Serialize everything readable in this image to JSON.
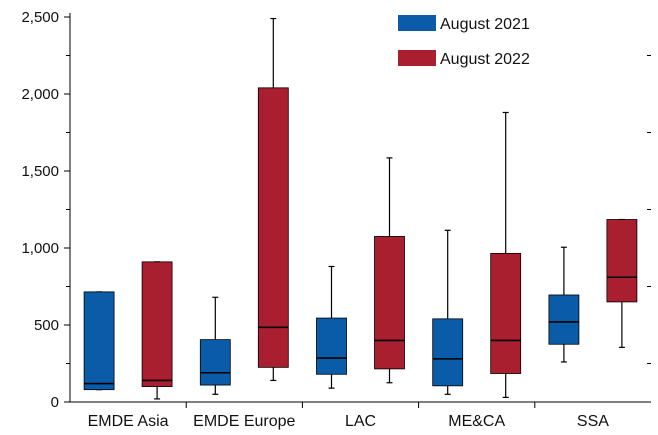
{
  "chart_data": {
    "type": "boxplot",
    "title": "",
    "xlabel": "",
    "ylabel": "",
    "ylim": [
      0,
      2500
    ],
    "yticks": [
      0,
      500,
      1000,
      1500,
      2000,
      2500
    ],
    "ytick_labels": [
      "0",
      "500",
      "1,000",
      "1,500",
      "2,000",
      "2,500"
    ],
    "grid": false,
    "legend_position": "top-right",
    "categories": [
      "EMDE Asia",
      "EMDE Europe",
      "LAC",
      "ME&CA",
      "SSA"
    ],
    "series": [
      {
        "name": "August 2021",
        "color": "#0b5ca8",
        "boxes": [
          {
            "min": 80,
            "q1": 80,
            "median": 120,
            "q3": 715,
            "max": 715
          },
          {
            "min": 50,
            "q1": 110,
            "median": 190,
            "q3": 405,
            "max": 680
          },
          {
            "min": 90,
            "q1": 180,
            "median": 285,
            "q3": 545,
            "max": 880
          },
          {
            "min": 50,
            "q1": 105,
            "median": 280,
            "q3": 540,
            "max": 1115
          },
          {
            "min": 260,
            "q1": 375,
            "median": 520,
            "q3": 695,
            "max": 1005
          }
        ]
      },
      {
        "name": "August 2022",
        "color": "#a91f2f",
        "boxes": [
          {
            "min": 20,
            "q1": 100,
            "median": 140,
            "q3": 910,
            "max": 910
          },
          {
            "min": 140,
            "q1": 225,
            "median": 485,
            "q3": 2040,
            "max": 2490
          },
          {
            "min": 125,
            "q1": 215,
            "median": 400,
            "q3": 1075,
            "max": 1585
          },
          {
            "min": 30,
            "q1": 185,
            "median": 400,
            "q3": 965,
            "max": 1880
          },
          {
            "min": 355,
            "q1": 650,
            "median": 810,
            "q3": 1185,
            "max": 1185
          }
        ]
      }
    ]
  }
}
